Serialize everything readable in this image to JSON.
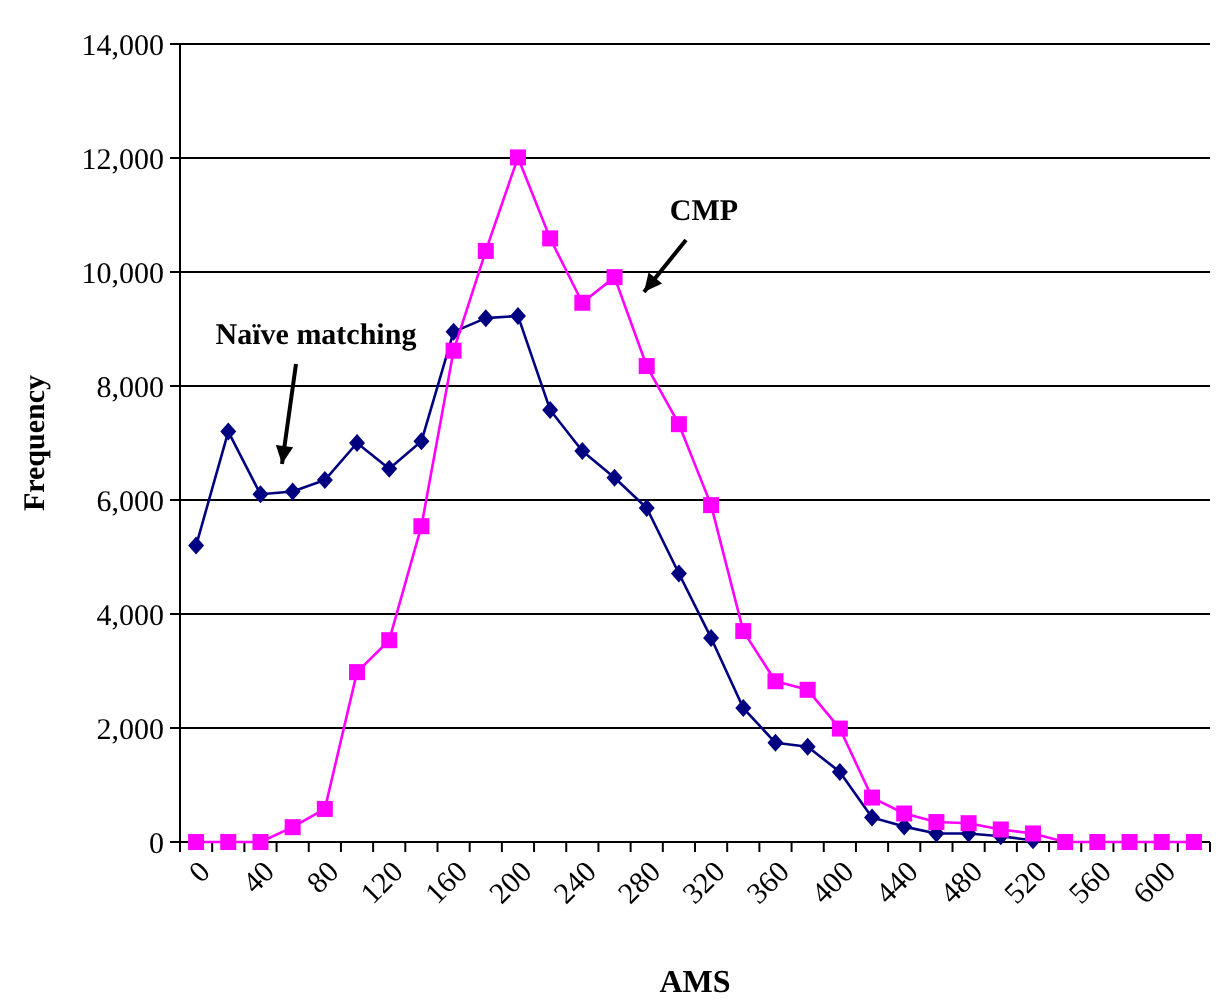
{
  "chart_data": {
    "type": "line",
    "xlabel": "AMS",
    "ylabel": "Frequency",
    "categories": [
      "0",
      null,
      "40",
      null,
      "80",
      null,
      "120",
      null,
      "160",
      null,
      "200",
      null,
      "240",
      null,
      "280",
      null,
      "320",
      null,
      "360",
      null,
      "400",
      null,
      "440",
      null,
      "480",
      null,
      "520",
      null,
      "560",
      null,
      "600",
      null
    ],
    "series": [
      {
        "name": "Naïve matching",
        "color": "#000080",
        "marker": "diamond",
        "values": [
          5200,
          7200,
          6100,
          6150,
          6350,
          7000,
          6550,
          7030,
          8950,
          9190,
          9230,
          7580,
          6860,
          6390,
          5860,
          4710,
          3580,
          2350,
          1740,
          1670,
          1230,
          430,
          270,
          150,
          150,
          100,
          30,
          null,
          null,
          null,
          null,
          null
        ]
      },
      {
        "name": "CMP",
        "color": "#ff00ff",
        "marker": "square",
        "values": [
          0,
          0,
          0,
          260,
          580,
          2980,
          3540,
          5540,
          8620,
          10370,
          12010,
          10590,
          9460,
          9910,
          8350,
          7330,
          5910,
          3700,
          2820,
          2670,
          1990,
          780,
          500,
          350,
          330,
          220,
          150,
          0,
          0,
          0,
          0,
          0
        ]
      }
    ],
    "ylim": [
      0,
      14000
    ],
    "yticks": [
      {
        "value": 0,
        "label": "0"
      },
      {
        "value": 2000,
        "label": "2,000"
      },
      {
        "value": 4000,
        "label": "4,000"
      },
      {
        "value": 6000,
        "label": "6,000"
      },
      {
        "value": 8000,
        "label": "8,000"
      },
      {
        "value": 10000,
        "label": "10,000"
      },
      {
        "value": 12000,
        "label": "12,000"
      },
      {
        "value": 14000,
        "label": "14,000"
      }
    ],
    "grid": "y",
    "line_style": "solid"
  }
}
